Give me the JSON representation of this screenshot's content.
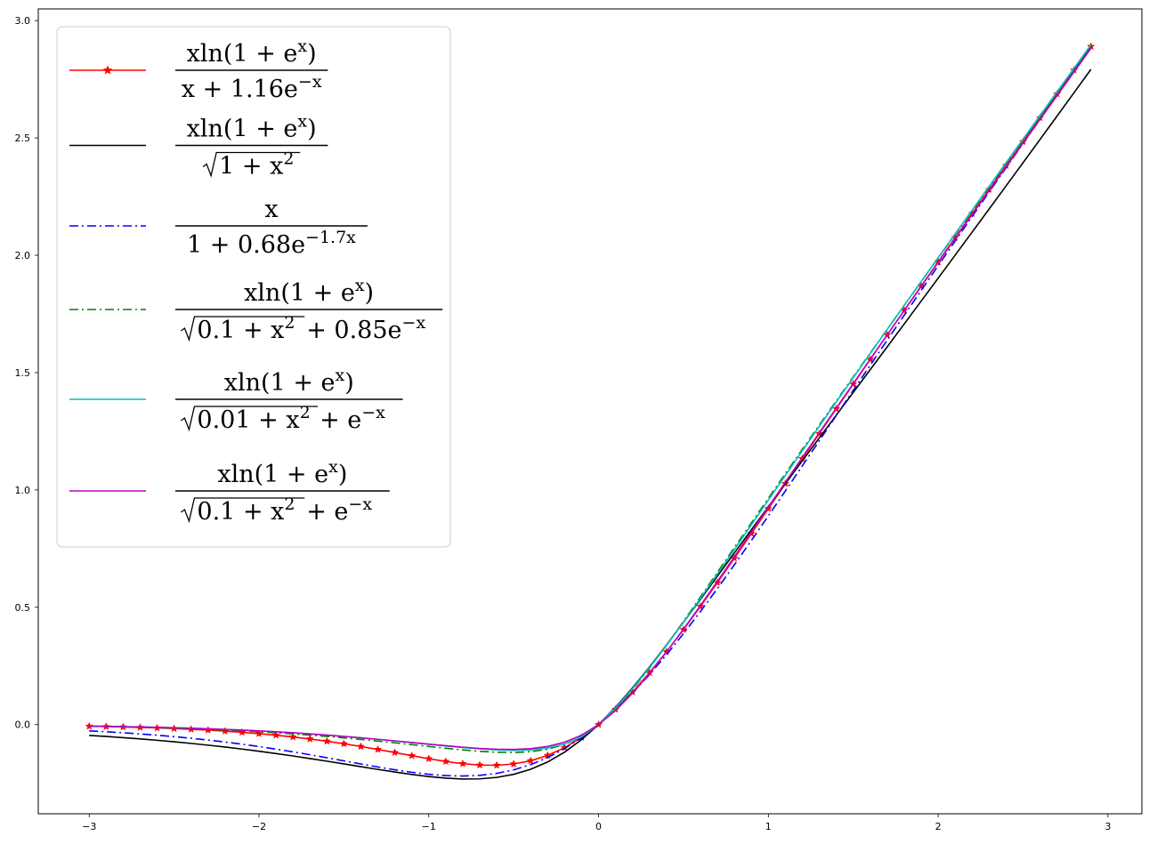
{
  "chart_data": {
    "type": "line",
    "title": "",
    "xlabel": "",
    "ylabel": "",
    "xlim": [
      -3.3,
      3.2
    ],
    "ylim": [
      -0.38,
      3.05
    ],
    "xticks": [
      -3,
      -2,
      -1,
      0,
      1,
      2,
      3
    ],
    "xtick_labels": [
      "−3",
      "−2",
      "−1",
      "0",
      "1",
      "2",
      "3"
    ],
    "yticks": [
      0.0,
      0.5,
      1.0,
      1.5,
      2.0,
      2.5,
      3.0
    ],
    "ytick_labels": [
      "0.0",
      "0.5",
      "1.0",
      "1.5",
      "2.0",
      "2.5",
      "3.0"
    ],
    "grid": false,
    "legend_position": "top-left",
    "x_range": [
      -3.0,
      2.9
    ],
    "x_step": 0.1,
    "series": [
      {
        "id": "s1",
        "color": "#ff0000",
        "linestyle": "solid",
        "marker": "star",
        "formula": "x*ln(1+e^x)/(x+1.16e^-x)",
        "legend": {
          "type": "frac",
          "num": "xln(1 + e^x)",
          "den": "x + 1.16e^−x"
        }
      },
      {
        "id": "s2",
        "color": "#000000",
        "linestyle": "solid",
        "marker": "none",
        "formula": "x*ln(1+e^x)/sqrt(1+x^2)",
        "legend": {
          "type": "frac",
          "num": "xln(1 + e^x)",
          "den": "√1 + x^2"
        }
      },
      {
        "id": "s3",
        "color": "#0000ff",
        "linestyle": "dashdot",
        "marker": "none",
        "formula": "x/(1+0.68e^(-1.7x))",
        "legend": {
          "type": "frac",
          "num": "x",
          "den": "1 + 0.68e^−1.7x"
        }
      },
      {
        "id": "s4",
        "color": "#008000",
        "linestyle": "dashdot",
        "marker": "none",
        "formula": "x*ln(1+e^x)/(sqrt(0.1+x^2)+0.85e^-x)",
        "legend": {
          "type": "frac",
          "num": "xln(1 + e^x)",
          "den": "√0.1 + x^2 + 0.85e^−x"
        }
      },
      {
        "id": "s5",
        "color": "#00bfbf",
        "linestyle": "solid",
        "marker": "none",
        "formula": "x*ln(1+e^x)/(sqrt(0.01+x^2)+e^-x)",
        "legend": {
          "type": "frac",
          "num": "xln(1 + e^x)",
          "den": "√0.01 + x^2 + e^−x"
        }
      },
      {
        "id": "s6",
        "color": "#bf00bf",
        "linestyle": "solid",
        "marker": "none",
        "formula": "x*ln(1+e^x)/(sqrt(0.1+x^2)+e^-x)",
        "legend": {
          "type": "frac",
          "num": "xln(1 + e^x)",
          "den": "√0.1 + x^2 + e^−x"
        }
      }
    ]
  }
}
